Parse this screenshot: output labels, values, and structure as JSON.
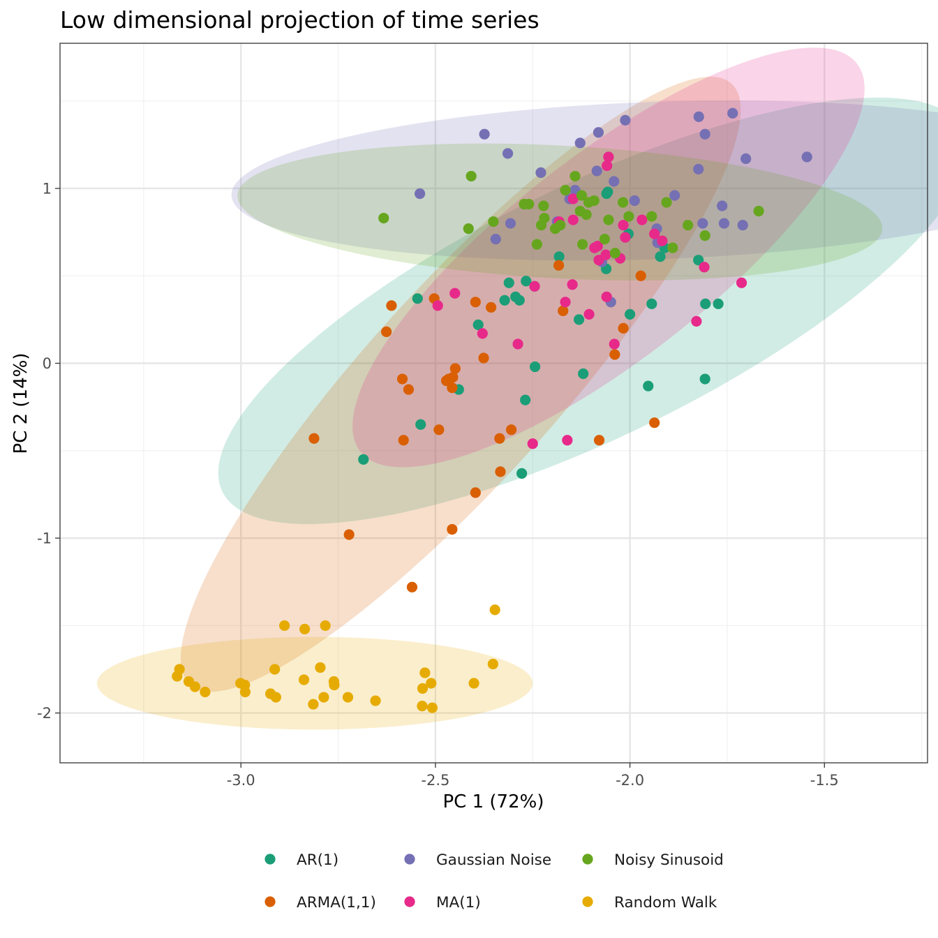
{
  "chart_data": {
    "type": "scatter",
    "title": "Low dimensional projection of time series",
    "xlabel": "PC 1 (72%)",
    "ylabel": "PC 2 (14%)",
    "xlim": [
      -3.465,
      -1.235
    ],
    "ylim": [
      -2.285,
      1.83
    ],
    "x_ticks": [
      -3.0,
      -2.5,
      -2.0,
      -1.5
    ],
    "x_tick_labels": [
      "-3.0",
      "-2.5",
      "-2.0",
      "-1.5"
    ],
    "y_ticks": [
      -2,
      -1,
      0,
      1
    ],
    "y_tick_labels": [
      "-2",
      "-1",
      "0",
      "1"
    ],
    "grid": true,
    "legend_position": "bottom",
    "ellipses": true,
    "series": [
      {
        "name": "AR(1)",
        "color": "#1b9e77",
        "ellipse": {
          "cx": -2.095,
          "cy": 0.3,
          "rx": 1.06,
          "ry": 0.72,
          "angle": 26
        },
        "points": [
          [
            -2.546,
            0.37
          ],
          [
            -2.311,
            0.46
          ],
          [
            -2.294,
            0.38
          ],
          [
            -2.267,
            0.47
          ],
          [
            -2.245,
            0.44
          ],
          [
            -2.322,
            0.36
          ],
          [
            -2.284,
            0.36
          ],
          [
            -2.182,
            0.61
          ],
          [
            -2.18,
            0.79
          ],
          [
            -2.06,
            0.97
          ],
          [
            -2.057,
            0.98
          ],
          [
            -2.061,
            0.54
          ],
          [
            -2.004,
            0.74
          ],
          [
            -1.922,
            0.61
          ],
          [
            -1.911,
            0.66
          ],
          [
            -1.824,
            0.59
          ],
          [
            -1.806,
            0.34
          ],
          [
            -1.773,
            0.34
          ],
          [
            -2.39,
            0.22
          ],
          [
            -2.131,
            0.25
          ],
          [
            -1.944,
            0.34
          ],
          [
            -2.0,
            0.28
          ],
          [
            -2.244,
            -0.02
          ],
          [
            -2.12,
            -0.06
          ],
          [
            -2.44,
            -0.15
          ],
          [
            -2.269,
            -0.21
          ],
          [
            -2.538,
            -0.35
          ],
          [
            -2.685,
            -0.55
          ],
          [
            -2.278,
            -0.63
          ],
          [
            -1.953,
            -0.13
          ],
          [
            -1.807,
            -0.09
          ]
        ]
      },
      {
        "name": "ARMA(1,1)",
        "color": "#d95f02",
        "ellipse": {
          "cx": -2.435,
          "cy": -0.12,
          "rx": 1.04,
          "ry": 0.55,
          "angle": 48
        },
        "points": [
          [
            -2.613,
            0.33
          ],
          [
            -2.503,
            0.37
          ],
          [
            -2.397,
            0.35
          ],
          [
            -2.357,
            0.32
          ],
          [
            -2.183,
            0.56
          ],
          [
            -1.972,
            0.5
          ],
          [
            -2.626,
            0.18
          ],
          [
            -2.172,
            0.3
          ],
          [
            -2.017,
            0.2
          ],
          [
            -2.376,
            0.03
          ],
          [
            -2.039,
            0.05
          ],
          [
            -2.449,
            -0.03
          ],
          [
            -2.455,
            -0.08
          ],
          [
            -2.466,
            -0.09
          ],
          [
            -2.472,
            -0.1
          ],
          [
            -2.585,
            -0.09
          ],
          [
            -2.569,
            -0.15
          ],
          [
            -2.457,
            -0.14
          ],
          [
            -2.812,
            -0.43
          ],
          [
            -2.582,
            -0.44
          ],
          [
            -2.491,
            -0.38
          ],
          [
            -2.335,
            -0.43
          ],
          [
            -2.305,
            -0.38
          ],
          [
            -2.079,
            -0.44
          ],
          [
            -1.937,
            -0.34
          ],
          [
            -2.333,
            -0.62
          ],
          [
            -2.397,
            -0.74
          ],
          [
            -2.457,
            -0.95
          ],
          [
            -2.722,
            -0.98
          ],
          [
            -2.56,
            -1.28
          ]
        ]
      },
      {
        "name": "Gaussian Noise",
        "color": "#7570b3",
        "ellipse": {
          "cx": -1.935,
          "cy": 1.045,
          "rx": 1.09,
          "ry": 0.45,
          "angle": 2
        },
        "points": [
          [
            -2.374,
            1.31
          ],
          [
            -2.314,
            1.2
          ],
          [
            -2.128,
            1.26
          ],
          [
            -2.081,
            1.32
          ],
          [
            -2.012,
            1.39
          ],
          [
            -1.823,
            1.41
          ],
          [
            -1.807,
            1.31
          ],
          [
            -1.736,
            1.43
          ],
          [
            -1.702,
            1.17
          ],
          [
            -1.545,
            1.18
          ],
          [
            -2.54,
            0.97
          ],
          [
            -2.229,
            1.09
          ],
          [
            -2.085,
            1.1
          ],
          [
            -2.041,
            1.04
          ],
          [
            -2.141,
            0.99
          ],
          [
            -2.155,
            0.94
          ],
          [
            -1.988,
            0.93
          ],
          [
            -1.824,
            1.11
          ],
          [
            -1.885,
            0.96
          ],
          [
            -1.763,
            0.9
          ],
          [
            -2.187,
            0.81
          ],
          [
            -2.307,
            0.8
          ],
          [
            -2.345,
            0.71
          ],
          [
            -1.931,
            0.77
          ],
          [
            -1.929,
            0.69
          ],
          [
            -1.813,
            0.8
          ],
          [
            -1.758,
            0.8
          ],
          [
            -1.71,
            0.79
          ],
          [
            -2.072,
            0.58
          ],
          [
            -2.049,
            0.35
          ]
        ]
      },
      {
        "name": "MA(1)",
        "color": "#e7298a",
        "ellipse": {
          "cx": -2.055,
          "cy": 0.605,
          "rx": 0.81,
          "ry": 0.58,
          "angle": 38
        },
        "points": [
          [
            -2.055,
            1.18
          ],
          [
            -2.059,
            1.13
          ],
          [
            -2.146,
            0.94
          ],
          [
            -2.146,
            0.82
          ],
          [
            -2.182,
            0.81
          ],
          [
            -2.017,
            0.79
          ],
          [
            -1.969,
            0.82
          ],
          [
            -1.937,
            0.74
          ],
          [
            -1.917,
            0.7
          ],
          [
            -2.012,
            0.72
          ],
          [
            -2.083,
            0.67
          ],
          [
            -2.062,
            0.62
          ],
          [
            -2.08,
            0.59
          ],
          [
            -2.025,
            0.6
          ],
          [
            -1.809,
            0.55
          ],
          [
            -1.713,
            0.46
          ],
          [
            -2.148,
            0.45
          ],
          [
            -2.45,
            0.4
          ],
          [
            -2.166,
            0.35
          ],
          [
            -2.06,
            0.38
          ],
          [
            -2.494,
            0.33
          ],
          [
            -2.105,
            0.28
          ],
          [
            -1.829,
            0.24
          ],
          [
            -2.379,
            0.17
          ],
          [
            -2.288,
            0.11
          ],
          [
            -2.04,
            0.11
          ],
          [
            -2.25,
            -0.46
          ],
          [
            -2.161,
            -0.44
          ],
          [
            -2.245,
            0.44
          ],
          [
            -2.091,
            0.66
          ]
        ]
      },
      {
        "name": "Noisy Sinusoid",
        "color": "#66a61e",
        "ellipse": {
          "cx": -2.18,
          "cy": 0.865,
          "rx": 0.83,
          "ry": 0.38,
          "angle": -3
        },
        "points": [
          [
            -2.633,
            0.83
          ],
          [
            -2.408,
            1.07
          ],
          [
            -2.141,
            1.07
          ],
          [
            -2.166,
            0.99
          ],
          [
            -2.124,
            0.96
          ],
          [
            -2.106,
            0.92
          ],
          [
            -2.092,
            0.93
          ],
          [
            -2.018,
            0.92
          ],
          [
            -1.906,
            0.92
          ],
          [
            -2.272,
            0.91
          ],
          [
            -2.26,
            0.91
          ],
          [
            -2.222,
            0.9
          ],
          [
            -2.128,
            0.87
          ],
          [
            -2.112,
            0.85
          ],
          [
            -2.003,
            0.84
          ],
          [
            -1.944,
            0.84
          ],
          [
            -2.22,
            0.83
          ],
          [
            -2.351,
            0.81
          ],
          [
            -2.055,
            0.82
          ],
          [
            -1.669,
            0.87
          ],
          [
            -2.228,
            0.79
          ],
          [
            -2.179,
            0.79
          ],
          [
            -1.851,
            0.79
          ],
          [
            -2.415,
            0.77
          ],
          [
            -2.192,
            0.77
          ],
          [
            -1.807,
            0.73
          ],
          [
            -2.065,
            0.71
          ],
          [
            -2.239,
            0.68
          ],
          [
            -2.122,
            0.68
          ],
          [
            -2.038,
            0.63
          ],
          [
            -1.89,
            0.66
          ]
        ]
      },
      {
        "name": "Random Walk",
        "color": "#e6ab02",
        "ellipse": {
          "cx": -2.81,
          "cy": -1.83,
          "rx": 0.56,
          "ry": 0.265,
          "angle": 0
        },
        "points": [
          [
            -2.888,
            -1.5
          ],
          [
            -2.836,
            -1.52
          ],
          [
            -2.783,
            -1.5
          ],
          [
            -2.347,
            -1.41
          ],
          [
            -3.158,
            -1.75
          ],
          [
            -3.164,
            -1.79
          ],
          [
            -3.134,
            -1.82
          ],
          [
            -3.118,
            -1.85
          ],
          [
            -3.092,
            -1.88
          ],
          [
            -3.001,
            -1.83
          ],
          [
            -2.99,
            -1.84
          ],
          [
            -2.989,
            -1.88
          ],
          [
            -2.913,
            -1.75
          ],
          [
            -2.838,
            -1.81
          ],
          [
            -2.796,
            -1.74
          ],
          [
            -2.761,
            -1.82
          ],
          [
            -2.76,
            -1.84
          ],
          [
            -2.924,
            -1.89
          ],
          [
            -2.91,
            -1.91
          ],
          [
            -2.787,
            -1.91
          ],
          [
            -2.814,
            -1.95
          ],
          [
            -2.725,
            -1.91
          ],
          [
            -2.654,
            -1.93
          ],
          [
            -2.527,
            -1.77
          ],
          [
            -2.533,
            -1.86
          ],
          [
            -2.511,
            -1.83
          ],
          [
            -2.534,
            -1.96
          ],
          [
            -2.508,
            -1.97
          ],
          [
            -2.401,
            -1.83
          ],
          [
            -2.352,
            -1.72
          ]
        ]
      }
    ]
  }
}
